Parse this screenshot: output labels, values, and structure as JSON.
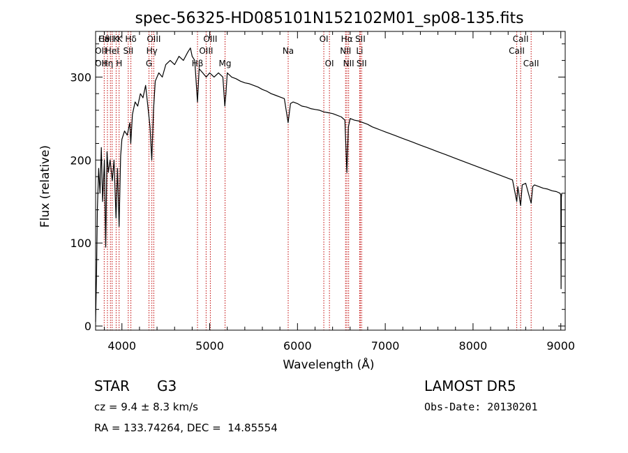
{
  "chart_data": {
    "type": "line",
    "title": "spec-56325-HD085101N152102M01_sp08-135.fits",
    "xlabel": "Wavelength (Å)",
    "ylabel": "Flux (relative)",
    "xlim": [
      3700,
      9050
    ],
    "ylim": [
      -5,
      355
    ],
    "xticks": [
      4000,
      5000,
      6000,
      7000,
      8000,
      9000
    ],
    "yticks": [
      0,
      100,
      200,
      300
    ],
    "grid": false,
    "series": [
      {
        "points": [
          [
            3700,
            5
          ],
          [
            3710,
            60
          ],
          [
            3720,
            140
          ],
          [
            3735,
            190
          ],
          [
            3750,
            160
          ],
          [
            3765,
            215
          ],
          [
            3780,
            150
          ],
          [
            3800,
            200
          ],
          [
            3815,
            95
          ],
          [
            3830,
            210
          ],
          [
            3845,
            185
          ],
          [
            3865,
            200
          ],
          [
            3890,
            175
          ],
          [
            3910,
            200
          ],
          [
            3933,
            130
          ],
          [
            3950,
            190
          ],
          [
            3968,
            120
          ],
          [
            3985,
            205
          ],
          [
            4000,
            225
          ],
          [
            4030,
            235
          ],
          [
            4060,
            230
          ],
          [
            4090,
            245
          ],
          [
            4101,
            220
          ],
          [
            4120,
            255
          ],
          [
            4150,
            270
          ],
          [
            4180,
            265
          ],
          [
            4210,
            280
          ],
          [
            4240,
            275
          ],
          [
            4270,
            290
          ],
          [
            4300,
            260
          ],
          [
            4320,
            240
          ],
          [
            4340,
            200
          ],
          [
            4360,
            260
          ],
          [
            4380,
            295
          ],
          [
            4420,
            305
          ],
          [
            4460,
            300
          ],
          [
            4500,
            315
          ],
          [
            4550,
            320
          ],
          [
            4600,
            315
          ],
          [
            4650,
            325
          ],
          [
            4700,
            320
          ],
          [
            4750,
            330
          ],
          [
            4780,
            335
          ],
          [
            4800,
            325
          ],
          [
            4830,
            320
          ],
          [
            4861,
            270
          ],
          [
            4880,
            310
          ],
          [
            4920,
            305
          ],
          [
            4960,
            300
          ],
          [
            5000,
            305
          ],
          [
            5050,
            300
          ],
          [
            5100,
            305
          ],
          [
            5150,
            300
          ],
          [
            5172,
            265
          ],
          [
            5185,
            280
          ],
          [
            5200,
            305
          ],
          [
            5250,
            300
          ],
          [
            5300,
            298
          ],
          [
            5350,
            295
          ],
          [
            5400,
            293
          ],
          [
            5450,
            292
          ],
          [
            5500,
            290
          ],
          [
            5550,
            288
          ],
          [
            5600,
            285
          ],
          [
            5650,
            283
          ],
          [
            5700,
            280
          ],
          [
            5750,
            278
          ],
          [
            5800,
            276
          ],
          [
            5850,
            274
          ],
          [
            5893,
            245
          ],
          [
            5920,
            268
          ],
          [
            5950,
            270
          ],
          [
            6000,
            268
          ],
          [
            6050,
            265
          ],
          [
            6100,
            264
          ],
          [
            6150,
            262
          ],
          [
            6200,
            261
          ],
          [
            6250,
            260
          ],
          [
            6300,
            258
          ],
          [
            6350,
            257
          ],
          [
            6400,
            256
          ],
          [
            6450,
            254
          ],
          [
            6500,
            252
          ],
          [
            6540,
            248
          ],
          [
            6563,
            185
          ],
          [
            6580,
            240
          ],
          [
            6600,
            250
          ],
          [
            6650,
            248
          ],
          [
            6700,
            247
          ],
          [
            6750,
            245
          ],
          [
            6800,
            243
          ],
          [
            6850,
            240
          ],
          [
            6900,
            238
          ],
          [
            6950,
            236
          ],
          [
            7000,
            234
          ],
          [
            7100,
            230
          ],
          [
            7200,
            226
          ],
          [
            7300,
            222
          ],
          [
            7400,
            218
          ],
          [
            7500,
            214
          ],
          [
            7600,
            210
          ],
          [
            7700,
            206
          ],
          [
            7800,
            202
          ],
          [
            7900,
            198
          ],
          [
            8000,
            194
          ],
          [
            8100,
            190
          ],
          [
            8200,
            186
          ],
          [
            8300,
            182
          ],
          [
            8400,
            178
          ],
          [
            8450,
            176
          ],
          [
            8498,
            150
          ],
          [
            8510,
            168
          ],
          [
            8542,
            145
          ],
          [
            8560,
            170
          ],
          [
            8600,
            172
          ],
          [
            8662,
            148
          ],
          [
            8680,
            168
          ],
          [
            8700,
            170
          ],
          [
            8750,
            168
          ],
          [
            8800,
            166
          ],
          [
            8850,
            165
          ],
          [
            8900,
            163
          ],
          [
            8950,
            162
          ],
          [
            8990,
            160
          ],
          [
            9000,
            158
          ],
          [
            9003,
            45
          ],
          [
            9006,
            155
          ],
          [
            9010,
            160
          ]
        ]
      }
    ],
    "line_markers": [
      {
        "wavelength": 3798,
        "label": "Hθ",
        "row": 0
      },
      {
        "wavelength": 3835,
        "label": "Hη",
        "row": 2
      },
      {
        "wavelength": 3869,
        "label": "CaII K",
        "label_alt": "K",
        "row": 0
      },
      {
        "wavelength": 3889,
        "label": "HeI",
        "row": 1
      },
      {
        "wavelength": 3934,
        "label": "K",
        "row": 0
      },
      {
        "wavelength": 3968,
        "label": "H",
        "row": 2
      },
      {
        "wavelength": 4072,
        "label": "SII",
        "row": 1
      },
      {
        "wavelength": 4102,
        "label": "Hδ",
        "row": 0
      },
      {
        "wavelength": 4308,
        "label": "G",
        "row": 2
      },
      {
        "wavelength": 4341,
        "label": "Hγ",
        "row": 1
      },
      {
        "wavelength": 4363,
        "label": "OIII",
        "row": 0
      },
      {
        "wavelength": 4861,
        "label": "Hβ",
        "row": 2
      },
      {
        "wavelength": 4959,
        "label": "OIII",
        "row": 1
      },
      {
        "wavelength": 5007,
        "label": "OIII",
        "row": 0
      },
      {
        "wavelength": 5175,
        "label": "Mg",
        "row": 2
      },
      {
        "wavelength": 5894,
        "label": "Na",
        "row": 1
      },
      {
        "wavelength": 6300,
        "label": "OI",
        "row": 0
      },
      {
        "wavelength": 6364,
        "label": "OI",
        "row": 2
      },
      {
        "wavelength": 6548,
        "label": "NII",
        "row": 1
      },
      {
        "wavelength": 6563,
        "label": "Hα",
        "row": 0
      },
      {
        "wavelength": 6583,
        "label": "NII",
        "row": 2
      },
      {
        "wavelength": 6708,
        "label": "Li",
        "row": 1
      },
      {
        "wavelength": 6716,
        "label": "SII",
        "row": 0
      },
      {
        "wavelength": 6731,
        "label": "SII",
        "row": 2
      },
      {
        "wavelength": 8498,
        "label": "CaII",
        "row": 1
      },
      {
        "wavelength": 8542,
        "label": "CaII",
        "row": 0
      },
      {
        "wavelength": 8662,
        "label": "CaII",
        "row": 2
      }
    ],
    "extra_marker_labels": [
      {
        "wavelength": 3727,
        "label": "OII",
        "row": 1
      },
      {
        "wavelength": 3727,
        "label": "OII",
        "row": 2
      }
    ]
  },
  "info": {
    "object_class": "STAR",
    "subclass": "G3",
    "survey": "LAMOST DR5",
    "redshift": "cz = 9.4 ± 8.3 km/s",
    "obs_date": "Obs-Date: 20130201",
    "coords": "RA = 133.74264, DEC =  14.85554"
  },
  "colors": {
    "line_marker": "#c00000",
    "spectrum": "#000000"
  }
}
